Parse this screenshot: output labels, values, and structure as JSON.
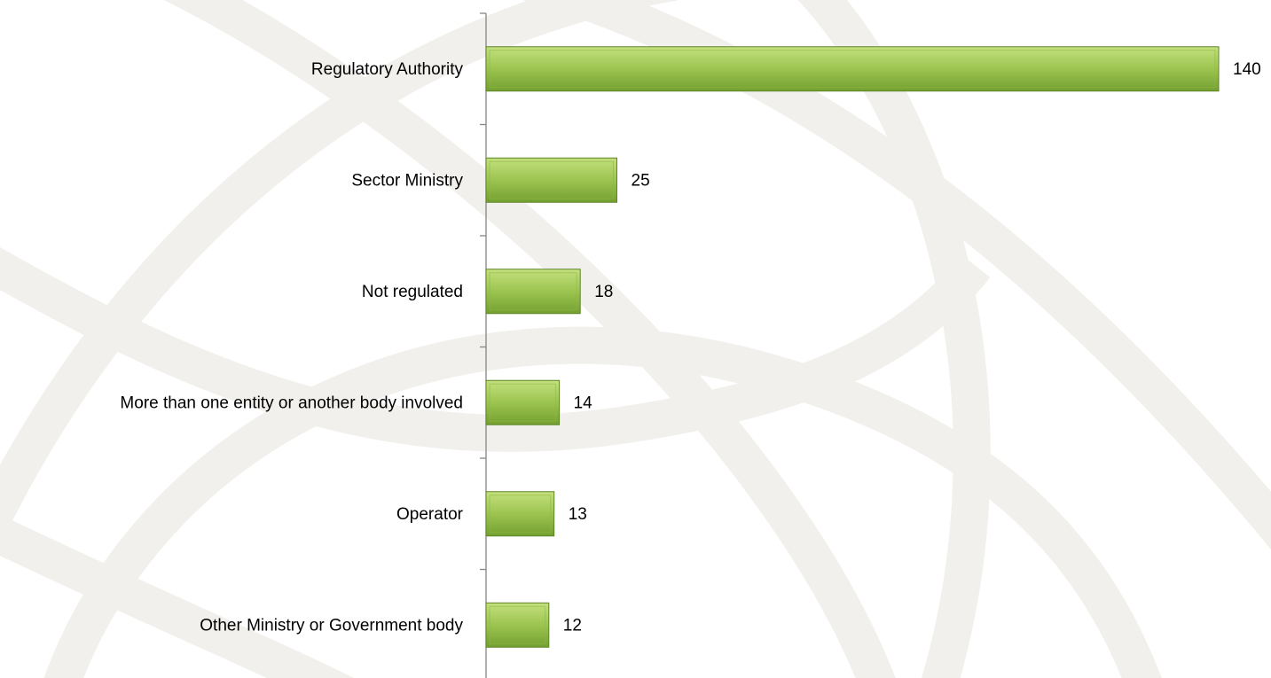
{
  "chart_data": {
    "type": "bar",
    "orientation": "horizontal",
    "categories": [
      "Regulatory Authority",
      "Sector Ministry",
      "Not regulated",
      "More than one entity or another body involved",
      "Operator",
      "Other Ministry or Government body"
    ],
    "values": [
      140,
      25,
      18,
      14,
      13,
      12
    ],
    "color": "#8db843"
  }
}
